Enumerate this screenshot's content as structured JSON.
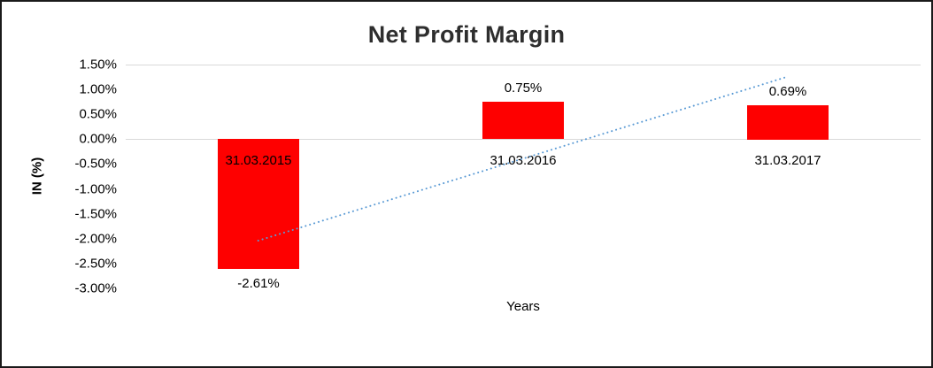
{
  "window": {
    "background": "#ffffff",
    "border_color": "#1a1a1a"
  },
  "chart_data": {
    "type": "bar",
    "title": "Net Profit Margin",
    "xlabel": "Years",
    "ylabel": "IN (%)",
    "categories": [
      "31.03.2015",
      "31.03.2016",
      "31.03.2017"
    ],
    "values": [
      -2.61,
      0.75,
      0.69
    ],
    "data_labels": [
      "-2.61%",
      "0.75%",
      "0.69%"
    ],
    "ylim": [
      -3.0,
      1.5
    ],
    "ytick_step": 0.5,
    "ytick_labels": [
      "1.50%",
      "1.00%",
      "0.50%",
      "0.00%",
      "-0.50%",
      "-1.00%",
      "-1.50%",
      "-2.00%",
      "-2.50%",
      "-3.00%"
    ],
    "bar_color": "#fe0000",
    "gridline_color": "#d9d9d9",
    "legend": "none",
    "grid": "top-gridline-and-zero-axis",
    "trendline": {
      "style": "dotted",
      "color": "#5b9bd5",
      "start_value": -2.04,
      "end_value": 1.26
    }
  }
}
